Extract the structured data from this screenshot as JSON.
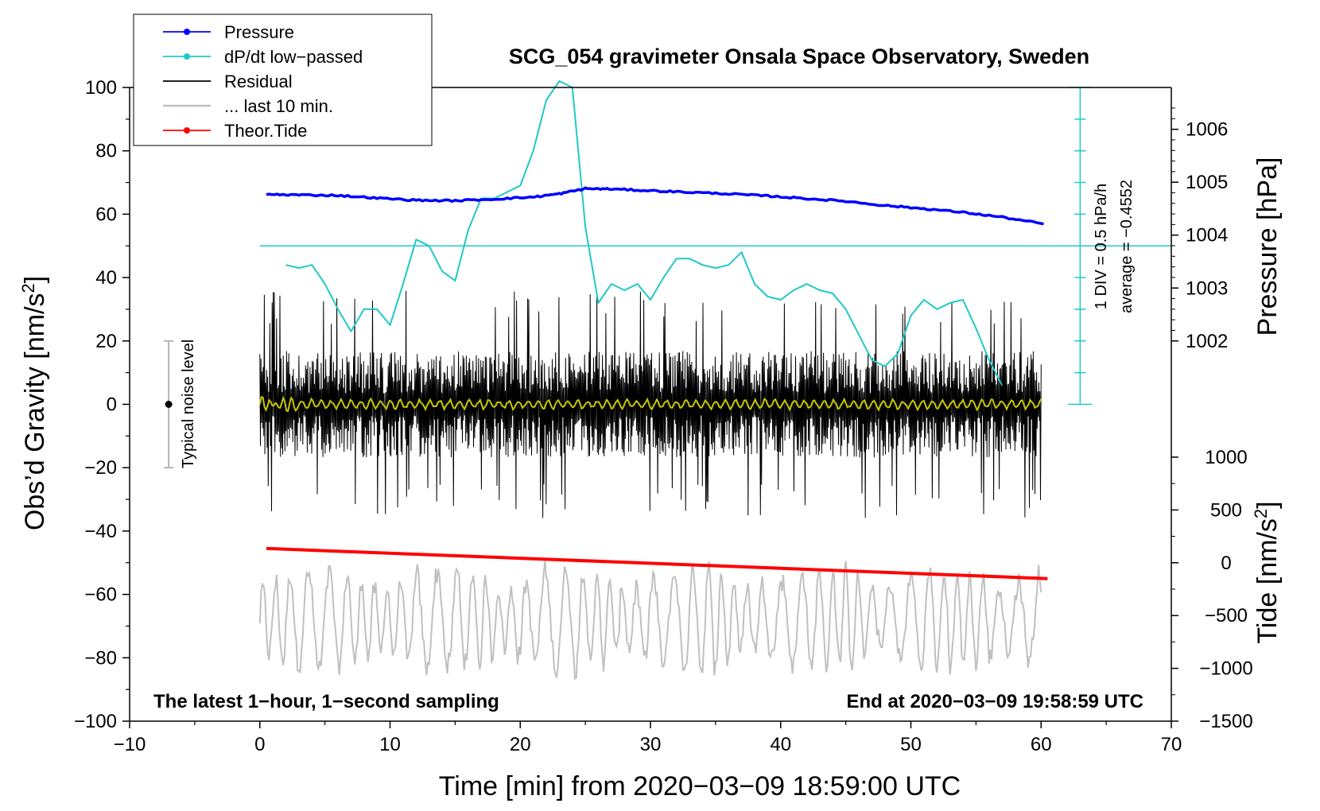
{
  "colors": {
    "pressure": "#0000ff",
    "dpdt": "#20c8c8",
    "residual": "#000000",
    "last10": "#c0c0c0",
    "tide": "#ff0000",
    "filtered": "#c8c800",
    "noise_bar": "#b4b4b4"
  },
  "chart_data": {
    "type": "line",
    "title": "SCG_054 gravimeter Onsala Space Observatory, Sweden",
    "xlabel": "Time [min] from 2020−03−09 18:59:00 UTC",
    "ylabel_left_main": "Obs’d Gravity [nm/s",
    "ylabel_left_sup": "2",
    "ylabel_left_end": "]",
    "ylabel_right_pressure": "Pressure [hPa]",
    "ylabel_right_tide_main": "Tide [nm/s",
    "ylabel_right_tide_sup": "2",
    "ylabel_right_tide_end": "]",
    "xlim": [
      -10,
      70
    ],
    "ylim_left": [
      -100,
      100
    ],
    "xticks": [
      -10,
      0,
      10,
      20,
      30,
      40,
      50,
      60,
      70
    ],
    "xtick_labels": [
      "−10",
      "0",
      "10",
      "20",
      "30",
      "40",
      "50",
      "60",
      "70"
    ],
    "yticks_left": [
      100,
      80,
      60,
      40,
      20,
      0,
      -20,
      -40,
      -60,
      -80,
      -100
    ],
    "ytick_labels_left": [
      "100",
      "80",
      "60",
      "40",
      "20",
      "0",
      "−20",
      "−40",
      "−60",
      "−80",
      "−100"
    ],
    "pressure_axis": {
      "ticks": [
        1006,
        1005,
        1004,
        1003,
        1002
      ],
      "tick_labels": [
        "1006",
        "1005",
        "1004",
        "1003",
        "1002"
      ],
      "gravity_equiv_of_1002": 20,
      "gravity_per_hpa": 16.7
    },
    "tide_axis": {
      "ticks": [
        1000,
        500,
        0,
        -500,
        -1000,
        -1500
      ],
      "tick_labels": [
        "1000",
        "500",
        "0",
        "−500",
        "−1000",
        "−1500"
      ],
      "gravity_equiv_of_minus1500": -100,
      "gravity_per_nms2": 0.03333
    },
    "dpdt_scale": {
      "label_div": "1 DIV = 0.5 hPa/h",
      "label_avg": "average = −0.4552",
      "x": 63,
      "y_range": [
        0,
        100
      ],
      "divisions": 10,
      "average_line_y": 50
    },
    "annotations": {
      "bottom_left": "The latest 1−hour, 1−second sampling",
      "bottom_right": "End at 2020−03−09 19:58:59 UTC",
      "noise_label": "Typical noise level"
    },
    "noise_bar": {
      "x": -7,
      "y_center": 0,
      "y_low": -20,
      "y_high": 20
    },
    "legend": [
      {
        "label": "Pressure",
        "series": "pressure",
        "marker": true
      },
      {
        "label": "dP/dt low−passed",
        "series": "dpdt",
        "marker": true
      },
      {
        "label": "Residual",
        "series": "residual",
        "marker": false
      },
      {
        "label": "... last 10 min.",
        "series": "last10",
        "marker": false
      },
      {
        "label": "Theor.Tide",
        "series": "tide",
        "marker": true
      }
    ],
    "series": [
      {
        "name": "Pressure",
        "axis": "pressure",
        "x": [
          0.5,
          3,
          6,
          9,
          12,
          15,
          18,
          21,
          23,
          25,
          27,
          30,
          33,
          36,
          39,
          42,
          45,
          48,
          51,
          54,
          57,
          60.2
        ],
        "values": [
          1004.77,
          1004.76,
          1004.75,
          1004.7,
          1004.66,
          1004.65,
          1004.68,
          1004.72,
          1004.78,
          1004.88,
          1004.87,
          1004.84,
          1004.81,
          1004.78,
          1004.74,
          1004.69,
          1004.64,
          1004.56,
          1004.5,
          1004.43,
          1004.34,
          1004.21
        ]
      },
      {
        "name": "dP/dt low−passed",
        "axis": "gravity",
        "x": [
          2,
          3,
          4,
          5,
          6,
          7,
          8,
          9,
          10,
          11,
          12,
          13,
          14,
          15,
          16,
          17,
          18,
          19,
          20,
          21,
          22,
          23,
          24,
          25,
          26,
          27,
          28,
          29,
          30,
          31,
          32,
          33,
          34,
          35,
          36,
          37,
          38,
          39,
          40,
          41,
          42,
          43,
          44,
          45,
          46,
          47,
          48,
          49,
          50,
          51,
          52,
          53,
          54,
          55,
          56,
          57
        ],
        "values": [
          44,
          43,
          44,
          38,
          30,
          23,
          30,
          30,
          25,
          38,
          52,
          50,
          42,
          39,
          55,
          65,
          65,
          67,
          69,
          80,
          96,
          102,
          100,
          56,
          32,
          38,
          36,
          38,
          33,
          40,
          46,
          46,
          44,
          43,
          44,
          48,
          38,
          34,
          33,
          36,
          38,
          36,
          35,
          30,
          22,
          14,
          12,
          16,
          28,
          33,
          30,
          32,
          33,
          24,
          14,
          6
        ]
      },
      {
        "name": "Residual",
        "axis": "gravity",
        "x_range": [
          0,
          60
        ],
        "amplitude": 14,
        "peak_amplitude": 36,
        "values_sample": [
          5,
          -18,
          25,
          -12,
          30,
          -22,
          18,
          -30,
          12,
          -8
        ]
      },
      {
        "name": "Residual filtered",
        "axis": "gravity",
        "x_range": [
          0,
          60
        ],
        "amplitude": 1.2,
        "values_sample": [
          1.5,
          -0.8,
          2.2,
          -1.4,
          0.6,
          -0.3
        ]
      },
      {
        "name": "... last 10 min.",
        "axis": "gravity",
        "x_range": [
          0,
          60
        ],
        "center": -68,
        "amplitude": 14,
        "peak_amplitude": 23,
        "values_sample": [
          -49,
          -75,
          -55,
          -88,
          -52,
          -82,
          -60,
          -72
        ]
      },
      {
        "name": "Theor.Tide",
        "axis": "gravity",
        "x": [
          0.5,
          60.5
        ],
        "values": [
          -45.5,
          -55
        ]
      }
    ]
  }
}
